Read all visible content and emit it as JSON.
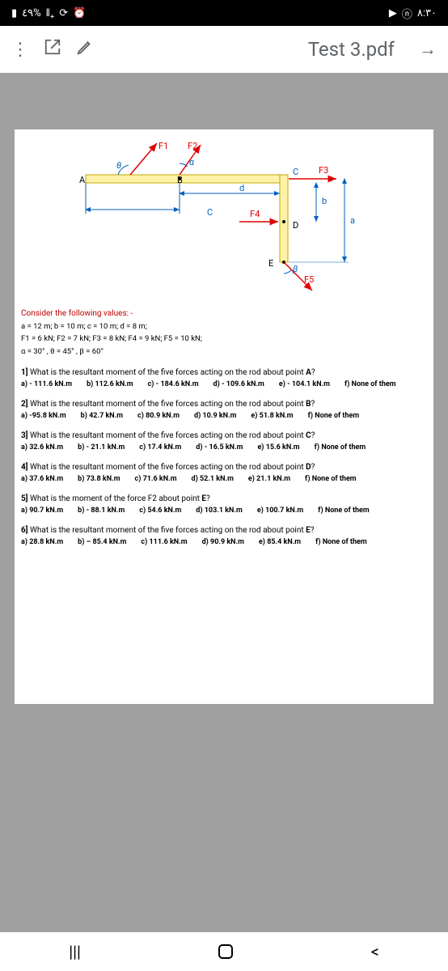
{
  "status": {
    "battery": "٤٩%",
    "time": "٨:٣٠"
  },
  "app": {
    "title": "Test 3.pdf"
  },
  "diagram": {
    "labels": {
      "F1": "F1",
      "F2": "F2",
      "F3": "F3",
      "F4": "F4",
      "F5": "F5",
      "A": "A",
      "B": "B",
      "C_top": "C",
      "C_bot": "C",
      "D": "D",
      "E": "E",
      "theta": "θ",
      "alpha": "α",
      "beta": "β",
      "a": "a",
      "b": "b",
      "d": "d"
    },
    "colors": {
      "bar": "#fff2a8",
      "bar_stroke": "#bfa800",
      "force": "#e00000",
      "dim": "#0060c0"
    }
  },
  "given": {
    "header": "Consider the following values: -",
    "line1": "a = 12 m;  b = 10 m;  c = 10 m;  d = 8 m;",
    "line2": "F1 = 6 kN;  F2 = 7 kN;  F3 = 8 kN;  F4 = 9 kN;  F5 = 10 kN;",
    "line3": "α = 30°  ,  θ = 45°   ,  β = 60°"
  },
  "questions": [
    {
      "prompt": "1] What is the resultant moment of the five forces acting on the rod about point A?",
      "opts": [
        "a) - 111.6 kN.m",
        "b) 112.6 kN.m",
        "c) - 184.6 kN.m",
        "d) - 109.6 kN.m",
        "e) - 104.1 kN.m",
        "f) None of them"
      ]
    },
    {
      "prompt": "2] What is the resultant moment of the five forces acting on the rod about point B?",
      "opts": [
        "a) -95.8 kN.m",
        "b) 42.7 kN.m",
        "c) 80.9 kN.m",
        "d) 10.9 kN.m",
        "e) 51.8 kN.m",
        "f) None of them"
      ]
    },
    {
      "prompt": "3] What is the resultant moment of the five forces acting on the rod about point C?",
      "opts": [
        "a) 32.6 kN.m",
        "b) - 21.1 kN.m",
        "c) 17.4 kN.m",
        "d) - 16.5 kN.m",
        "e) 15.6 kN.m",
        "f) None of them"
      ]
    },
    {
      "prompt": "4] What is the resultant moment of the five forces acting on the rod about point D?",
      "opts": [
        "a) 37.6 kN.m",
        "b) 73.8 kN.m",
        "c) 71.6 kN.m",
        "d) 52.1 kN.m",
        "e) 21.1 kN.m",
        "f) None of them"
      ]
    },
    {
      "prompt": "5] What is the moment of the force F2 about point E?",
      "opts": [
        "a) 90.7 kN.m",
        "b) - 88.1 kN.m",
        "c) 54.6 kN.m",
        "d) 103.1 kN.m",
        "e) 100.7 kN.m",
        "f) None of them"
      ]
    },
    {
      "prompt": "6] What is the resultant moment of the five forces acting on the rod about point E?",
      "opts": [
        "a) 28.8 kN.m",
        "b) – 85.4 kN.m",
        "c) 111.6 kN.m",
        "d) 90.9 kN.m",
        "e) 85.4 kN.m",
        "f) None of them"
      ]
    }
  ]
}
